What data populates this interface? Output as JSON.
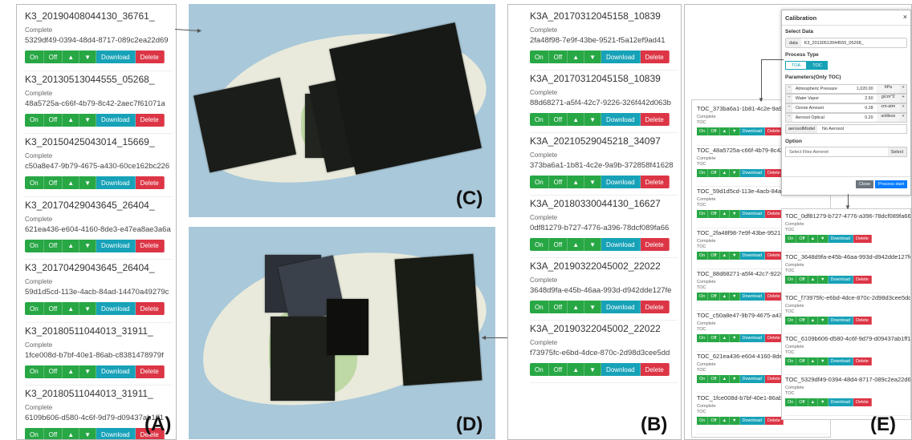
{
  "panel_a": {
    "items": [
      {
        "title": "K3_20190408044130_36761_",
        "status": "Complete",
        "uuid": "5329df49-0394-48d4-8717-089c2ea22d69"
      },
      {
        "title": "K3_20130513044555_05268_",
        "status": "Complete",
        "uuid": "48a5725a-c66f-4b79-8c42-2aec7f61071a"
      },
      {
        "title": "K3_20150425043014_15669_",
        "status": "Complete",
        "uuid": "c50a8e47-9b79-4675-a430-60ce162bc226"
      },
      {
        "title": "K3_20170429043645_26404_",
        "status": "Complete",
        "uuid": "621ea436-e604-4160-8de3-e47ea8ae3a6a"
      },
      {
        "title": "K3_20170429043645_26404_",
        "status": "Complete",
        "uuid": "59d1d5cd-113e-4acb-84ad-14470a49279c"
      },
      {
        "title": "K3_20180511044013_31911_",
        "status": "Complete",
        "uuid": "1fce008d-b7bf-40e1-86ab-c8381478979f"
      },
      {
        "title": "K3_20180511044013_31911_",
        "status": "Complete",
        "uuid": "6109b606-d580-4c6f-9d79-d09437ab1ff1"
      }
    ]
  },
  "panel_b": {
    "items": [
      {
        "title": "K3A_20170312045158_10839",
        "status": "Complete",
        "uuid": "2fa48f98-7e9f-43be-9521-f5a12ef9ad41"
      },
      {
        "title": "K3A_20170312045158_10839",
        "status": "Complete",
        "uuid": "88d68271-a5f4-42c7-9226-326f442d063b"
      },
      {
        "title": "K3A_20210529045218_34097",
        "status": "Complete",
        "uuid": "373ba6a1-1b81-4c2e-9a9b-372858f41628"
      },
      {
        "title": "K3A_20180330044130_16627",
        "status": "Complete",
        "uuid": "0df81279-b727-4776-a396-78dcf089fa66"
      },
      {
        "title": "K3A_20190322045002_22022",
        "status": "Complete",
        "uuid": "3648d9fa-e45b-46aa-993d-d942dde127fe"
      },
      {
        "title": "K3A_20190322045002_22022",
        "status": "Complete",
        "uuid": "f73975fc-e6bd-4dce-870c-2d98d3cee5dd"
      }
    ]
  },
  "buttons": {
    "on": "On",
    "off": "Off",
    "up": "▲",
    "down": "▼",
    "download": "Download",
    "delete": "Delete"
  },
  "labels": {
    "a": "(A)",
    "b": "(B)",
    "c": "(C)",
    "d": "(D)",
    "e": "(E)"
  },
  "panel_e": {
    "left_items": [
      {
        "title": "TOC_373ba6a1-1b81-4c2e-9a9b-",
        "status": "Complete",
        "sub": "TOC"
      },
      {
        "title": "TOC_48a5725a-c66f-4b79-8c42-",
        "status": "Complete",
        "sub": "TOC"
      },
      {
        "title": "TOC_59d1d5cd-113e-4acb-84ad-",
        "status": "Complete",
        "sub": "TOC"
      },
      {
        "title": "TOC_2fa48f98-7e9f-43be-9521-f",
        "status": "Complete",
        "sub": "TOC"
      },
      {
        "title": "TOC_88d68271-a5f4-42c7-9226-",
        "status": "Complete",
        "sub": "TOC"
      },
      {
        "title": "TOC_c50a8e47-9b79-4675-a430-",
        "status": "Complete",
        "sub": "TOC"
      },
      {
        "title": "TOC_621ea436-e604-4160-8de3-",
        "status": "Complete",
        "sub": "TOC"
      },
      {
        "title": "TOC_1fce008d-b7bf-40e1-86ab-c",
        "status": "Complete",
        "sub": "TOC"
      }
    ],
    "right_items": [
      {
        "title": "TOC_0df81279-b727-4776-a396-78dcf089fa66",
        "status": "Complete",
        "sub": "TOC"
      },
      {
        "title": "TOC_3648d9fa-e45b-46aa-993d-d942dde127fe",
        "status": "Complete",
        "sub": "TOC"
      },
      {
        "title": "TOC_f73975fc-e6bd-4dce-870c-2d98d3cee5dd",
        "status": "Complete",
        "sub": "TOC"
      },
      {
        "title": "TOC_6109b606-d580-4c6f-9d79-d09437ab1ff1",
        "status": "Complete",
        "sub": "TOC"
      },
      {
        "title": "TOC_5329df49-0394-48d4-8717-089c2ea22d69",
        "status": "Complete",
        "sub": "TOC"
      }
    ],
    "dialog": {
      "title": "Calibration",
      "close_x": "×",
      "select_data_label": "Select Data",
      "data_prefix": "data",
      "data_value": "K3_20130513044555_05268_",
      "process_type_label": "Process Type",
      "toa": "TOA",
      "toc": "TOC",
      "params_label": "Parameters(Only TOC)",
      "params": [
        {
          "name": "Atmospheric Pressure",
          "value": "1,020.00",
          "unit": "hPa"
        },
        {
          "name": "Water Vapor",
          "value": "2.50",
          "unit": "g/cm^2"
        },
        {
          "name": "Ozone Amount",
          "value": "0.28",
          "unit": "cm-atm"
        },
        {
          "name": "Aerosol Optical",
          "value": "0.20",
          "unit": "unitless"
        }
      ],
      "aerosol_model_label": "aerosolModel",
      "aerosol_model_value": "No Aerosol",
      "option_label": "Option",
      "select_files_label": "Select Files Aeronet",
      "select_btn": "Select",
      "close_btn": "Close",
      "process_btn": "Process start"
    }
  }
}
